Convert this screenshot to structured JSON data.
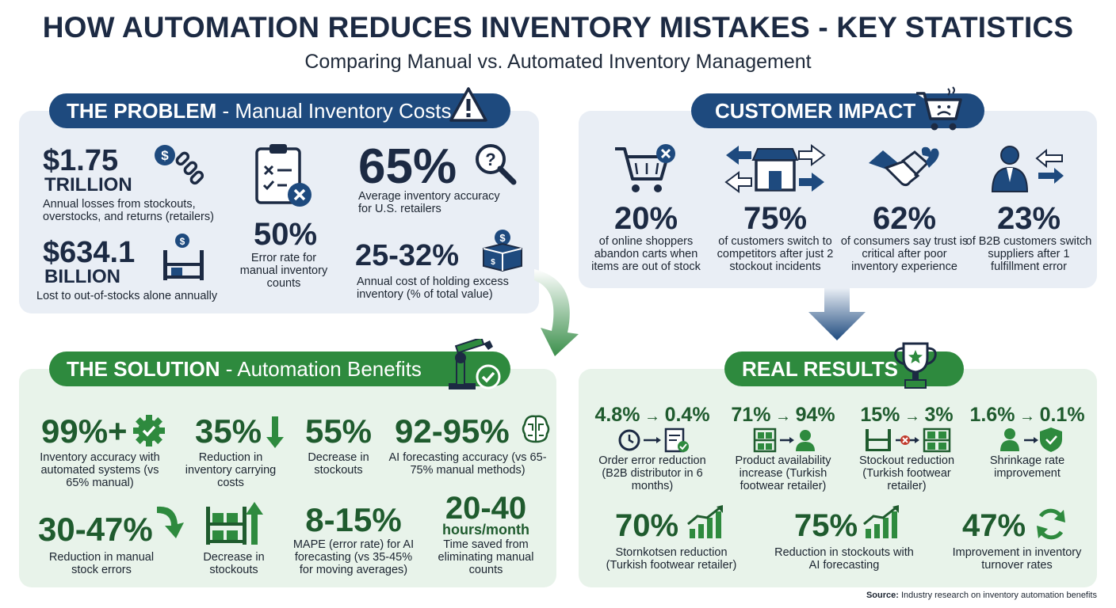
{
  "header": {
    "title": "HOW AUTOMATION REDUCES INVENTORY MISTAKES - KEY STATISTICS",
    "subtitle": "Comparing Manual vs. Automated Inventory Management"
  },
  "problem": {
    "heading_bold": "THE PROBLEM",
    "heading_rest": " - Manual Inventory Costs",
    "stats": [
      {
        "value": "$1.75",
        "unit": "TRILLION",
        "label": "Annual losses from stockouts, overstocks, and returns (retailers)"
      },
      {
        "value": "$634.1",
        "unit": "BILLION",
        "label": "Lost to out-of-stocks alone annually"
      },
      {
        "value": "50%",
        "label": "Error rate for manual inventory counts"
      },
      {
        "value": "65%",
        "label": "Average inventory accuracy for U.S. retailers"
      },
      {
        "value": "25-32%",
        "label": "Annual cost of holding excess inventory (% of total value)"
      }
    ]
  },
  "customer": {
    "heading": "CUSTOMER IMPACT",
    "stats": [
      {
        "value": "20%",
        "label": "of online shoppers abandon carts when items are out of stock"
      },
      {
        "value": "75%",
        "label": "of customers switch to competitors after just 2 stockout incidents"
      },
      {
        "value": "62%",
        "label": "of consumers say trust is critical after poor inventory experience"
      },
      {
        "value": "23%",
        "label": "of B2B customers switch suppliers after 1 fulfillment error"
      }
    ]
  },
  "solution": {
    "heading_bold": "THE SOLUTION",
    "heading_rest": " - Automation Benefits",
    "stats": [
      {
        "value": "99%+",
        "label": "Inventory accuracy with automated systems (vs 65% manual)"
      },
      {
        "value": "35%",
        "label": "Reduction in inventory carrying costs"
      },
      {
        "value": "55%",
        "label": "Decrease in stockouts"
      },
      {
        "value": "92-95%",
        "label": "AI forecasting accuracy (vs 65-75% manual methods)"
      },
      {
        "value": "30-47%",
        "label": "Reduction in manual stock errors"
      },
      {
        "value": "",
        "label": "Decrease in stockouts"
      },
      {
        "value": "8-15%",
        "label": "MAPE (error rate) for AI forecasting (vs 35-45% for moving averages)"
      },
      {
        "value": "20-40",
        "unit": "hours/month",
        "label": "Time saved from eliminating manual counts"
      }
    ]
  },
  "results": {
    "heading": "REAL RESULTS",
    "before_after": [
      {
        "from": "4.8%",
        "to": "0.4%",
        "label": "Order error reduction (B2B distributor in 6 months)"
      },
      {
        "from": "71%",
        "to": "94%",
        "label": "Product availability increase (Turkish footwear retailer)"
      },
      {
        "from": "15%",
        "to": "3%",
        "label": "Stockout reduction (Turkish footwear retailer)"
      },
      {
        "from": "1.6%",
        "to": "0.1%",
        "label": "Shrinkage rate improvement"
      }
    ],
    "stats": [
      {
        "value": "70%",
        "label": "Stornkotsen reduction (Turkish footwear retailer)"
      },
      {
        "value": "75%",
        "label": "Reduction in stockouts with AI forecasting"
      },
      {
        "value": "47%",
        "label": "Improvement in inventory turnover rates"
      }
    ]
  },
  "source": {
    "bold": "Source:",
    "text": " Industry research on inventory automation benefits"
  },
  "colors": {
    "navy": "#1e4a7e",
    "green": "#2e8a3e",
    "dark_green": "#1f5b2e",
    "panel_blue": "#e9eef5",
    "panel_green": "#e8f3ea"
  }
}
